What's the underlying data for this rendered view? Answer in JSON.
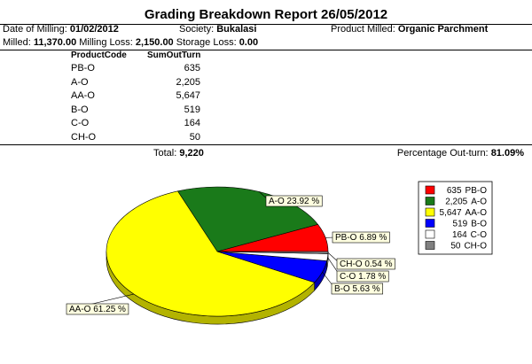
{
  "header": {
    "title": "Grading Breakdown Report 26/05/2012",
    "date_label": "Date of Milling:",
    "date": "01/02/2012",
    "society_label": "Society:",
    "society": "Bukalasi",
    "product_label": "Product Milled:",
    "product": "Organic Parchment",
    "milled_label": "Milled:",
    "milled": "11,370.00",
    "loss_label": "Milling Loss:",
    "loss": "2,150.00",
    "storage_label": "Storage Loss:",
    "storage": "0.00"
  },
  "table": {
    "columns": [
      "ProductCode",
      "SumOutTurn"
    ],
    "rows": [
      [
        "PB-O",
        "635"
      ],
      [
        "A-O",
        "2,205"
      ],
      [
        "AA-O",
        "5,647"
      ],
      [
        "B-O",
        "519"
      ],
      [
        "C-O",
        "164"
      ],
      [
        "CH-O",
        "50"
      ]
    ]
  },
  "footer": {
    "total_label": "Total:",
    "total": "9,220",
    "pct_label": "Percentage Out-turn:",
    "pct": "81.09%"
  },
  "chart_data": {
    "type": "pie",
    "categories": [
      "PB-O",
      "A-O",
      "AA-O",
      "B-O",
      "C-O",
      "CH-O"
    ],
    "values": [
      635,
      2205,
      5647,
      519,
      164,
      50
    ],
    "value_labels": [
      "635",
      "2,205",
      "5,647",
      "519",
      "164",
      "50"
    ],
    "slice_labels": [
      "PB-O 6.89 %",
      "A-O 23.92 %",
      "AA-O 61.25 %",
      "B-O 5.63 %",
      "C-O 1.78 %",
      "CH-O 0.54 %"
    ],
    "colors": [
      "#ff0000",
      "#1a7a1a",
      "#ffff00",
      "#0000ff",
      "#ffffff",
      "#808080"
    ]
  }
}
